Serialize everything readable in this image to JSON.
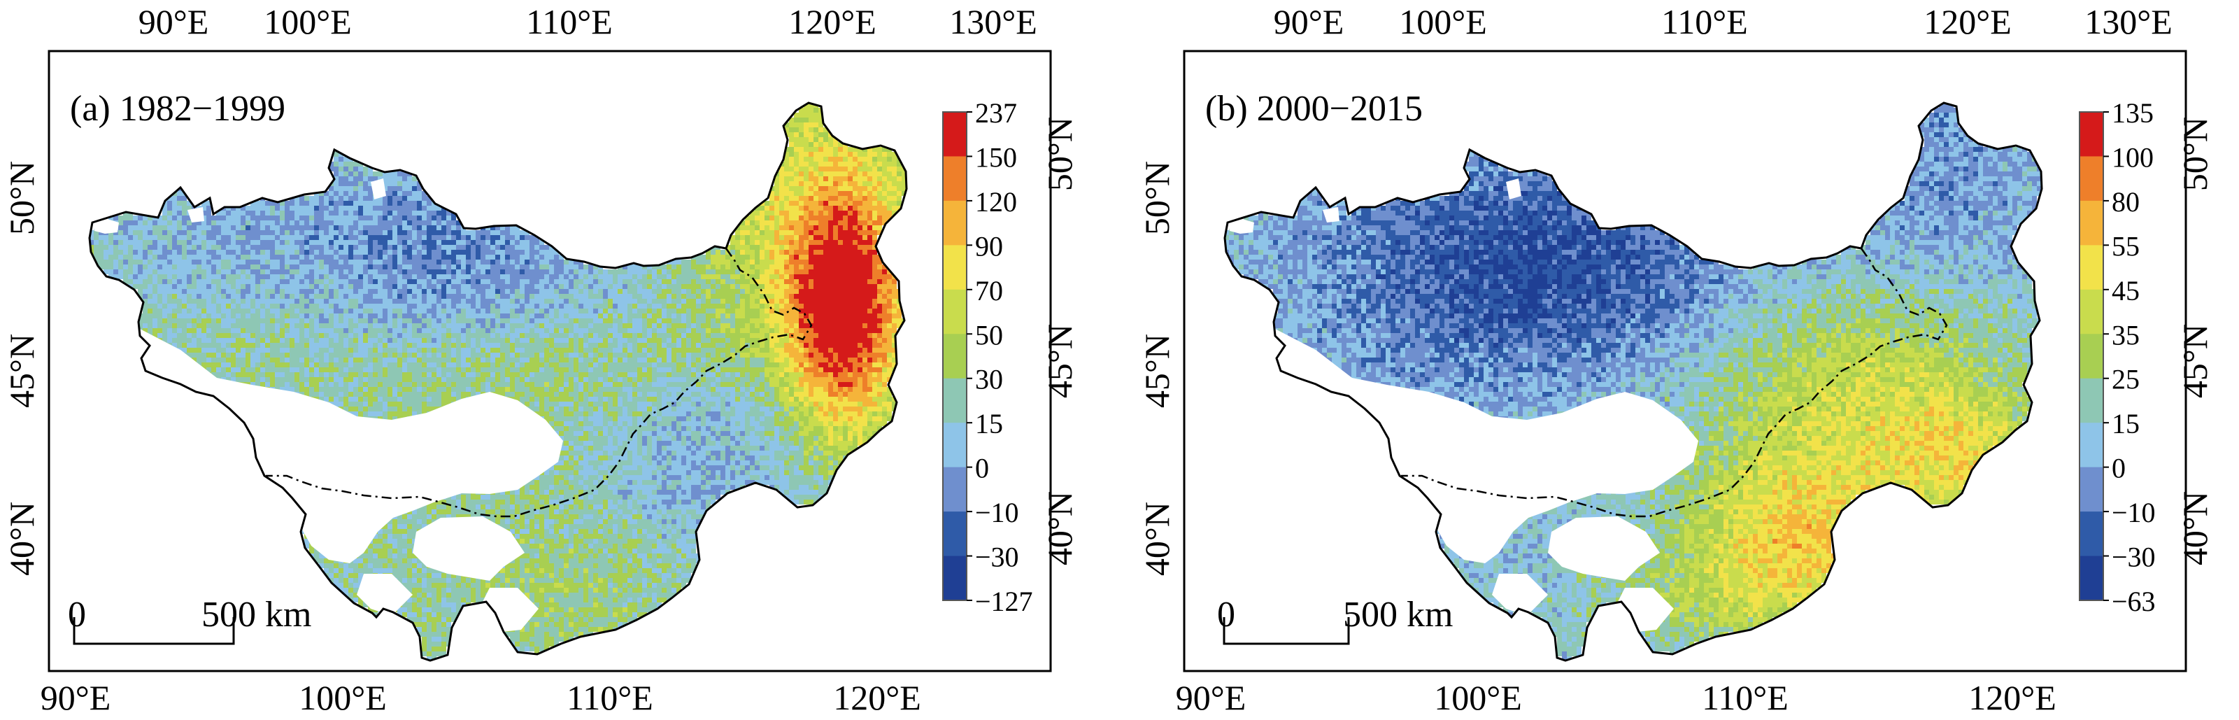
{
  "colors": {
    "no_data": "#ffffff",
    "border": "#000000",
    "scale": [
      "#1f3f94",
      "#2f5ba8",
      "#6f8fce",
      "#8ec4e8",
      "#8ec7b4",
      "#a8cf52",
      "#c9dc4d",
      "#f2e24a",
      "#f5b43a",
      "#ee7f2a",
      "#d51a1a"
    ]
  },
  "scalebar": {
    "start_label": "0",
    "end_label": "500 km"
  },
  "axes": {
    "bottom_lon_labels": [
      "90°E",
      "100°E",
      "110°E",
      "120°E"
    ],
    "top_lon_labels": [
      "90°E",
      "100°E",
      "110°E",
      "120°E",
      "130°E"
    ],
    "left_lat_labels": [
      "50°N",
      "45°N",
      "40°N"
    ],
    "right_lat_labels": [
      "50°N",
      "45°N",
      "40°N"
    ]
  },
  "panels": [
    {
      "id": "a",
      "label": "(a) 1982−1999",
      "legend_labels": [
        "237",
        "150",
        "120",
        "90",
        "70",
        "50",
        "30",
        "15",
        "0",
        "−10",
        "−30",
        "−127"
      ],
      "pattern": "northeast_high"
    },
    {
      "id": "b",
      "label": "(b) 2000−2015",
      "legend_labels": [
        "135",
        "100",
        "80",
        "55",
        "45",
        "35",
        "25",
        "15",
        "0",
        "−10",
        "−30",
        "−63"
      ],
      "pattern": "southeast_high"
    }
  ]
}
